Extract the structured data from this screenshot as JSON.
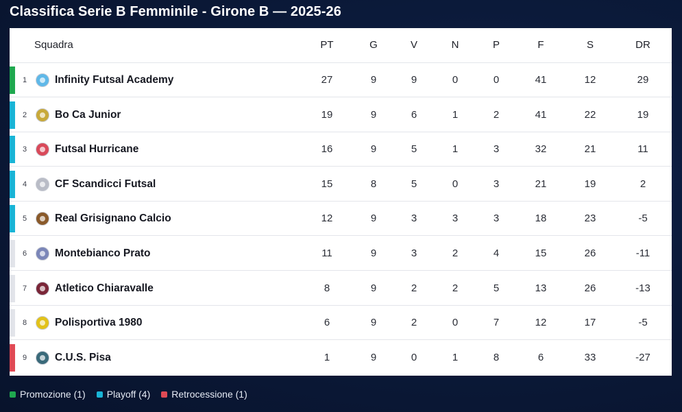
{
  "title": "Classifica Serie B Femminile - Girone B — 2025-26",
  "columns": {
    "team": "Squadra",
    "pt": "PT",
    "g": "G",
    "v": "V",
    "n": "N",
    "p": "P",
    "f": "F",
    "s": "S",
    "dr": "DR"
  },
  "colors": {
    "promotion": "#1fa84f",
    "playoff": "#19b4d6",
    "relegation": "#e04a55",
    "neutral": "#e2e4ea"
  },
  "rows": [
    {
      "pos": "1",
      "team": "Infinity Futsal Academy",
      "pt": "27",
      "g": "9",
      "v": "9",
      "n": "0",
      "p": "0",
      "f": "41",
      "s": "12",
      "dr": "29",
      "zone": "promotion",
      "crest": "wing-crest-icon",
      "crest_color": "#5fb8e8"
    },
    {
      "pos": "2",
      "team": "Bo Ca Junior",
      "pt": "19",
      "g": "9",
      "v": "6",
      "n": "1",
      "p": "2",
      "f": "41",
      "s": "22",
      "dr": "19",
      "zone": "playoff",
      "crest": "shield-crest-icon",
      "crest_color": "#c8a93a"
    },
    {
      "pos": "3",
      "team": "Futsal Hurricane",
      "pt": "16",
      "g": "9",
      "v": "5",
      "n": "1",
      "p": "3",
      "f": "32",
      "s": "21",
      "dr": "11",
      "zone": "playoff",
      "crest": "hurricane-crest-icon",
      "crest_color": "#d94a5a"
    },
    {
      "pos": "4",
      "team": "CF Scandicci Futsal",
      "pt": "15",
      "g": "8",
      "v": "5",
      "n": "0",
      "p": "3",
      "f": "21",
      "s": "19",
      "dr": "2",
      "zone": "playoff",
      "crest": "shield-crest-icon",
      "crest_color": "#b9bcc6"
    },
    {
      "pos": "5",
      "team": "Real Grisignano Calcio",
      "pt": "12",
      "g": "9",
      "v": "3",
      "n": "3",
      "p": "3",
      "f": "18",
      "s": "23",
      "dr": "-5",
      "zone": "playoff",
      "crest": "shield-crest-icon",
      "crest_color": "#8a5a2a"
    },
    {
      "pos": "6",
      "team": "Montebianco Prato",
      "pt": "11",
      "g": "9",
      "v": "3",
      "n": "2",
      "p": "4",
      "f": "15",
      "s": "26",
      "dr": "-11",
      "zone": "neutral",
      "crest": "round-crest-icon",
      "crest_color": "#7b86b8"
    },
    {
      "pos": "7",
      "team": "Atletico Chiaravalle",
      "pt": "8",
      "g": "9",
      "v": "2",
      "n": "2",
      "p": "5",
      "f": "13",
      "s": "26",
      "dr": "-13",
      "zone": "neutral",
      "crest": "figure-crest-icon",
      "crest_color": "#7a2638"
    },
    {
      "pos": "8",
      "team": "Polisportiva 1980",
      "pt": "6",
      "g": "9",
      "v": "2",
      "n": "0",
      "p": "7",
      "f": "12",
      "s": "17",
      "dr": "-5",
      "zone": "neutral",
      "crest": "round-crest-icon",
      "crest_color": "#e2c21a"
    },
    {
      "pos": "9",
      "team": "C.U.S. Pisa",
      "pt": "1",
      "g": "9",
      "v": "0",
      "n": "1",
      "p": "8",
      "f": "6",
      "s": "33",
      "dr": "-27",
      "zone": "relegation",
      "crest": "round-crest-icon",
      "crest_color": "#3a6a7a"
    }
  ],
  "legend": [
    {
      "label": "Promozione (1)",
      "zone": "promotion"
    },
    {
      "label": "Playoff (4)",
      "zone": "playoff"
    },
    {
      "label": "Retrocessione (1)",
      "zone": "relegation"
    }
  ]
}
